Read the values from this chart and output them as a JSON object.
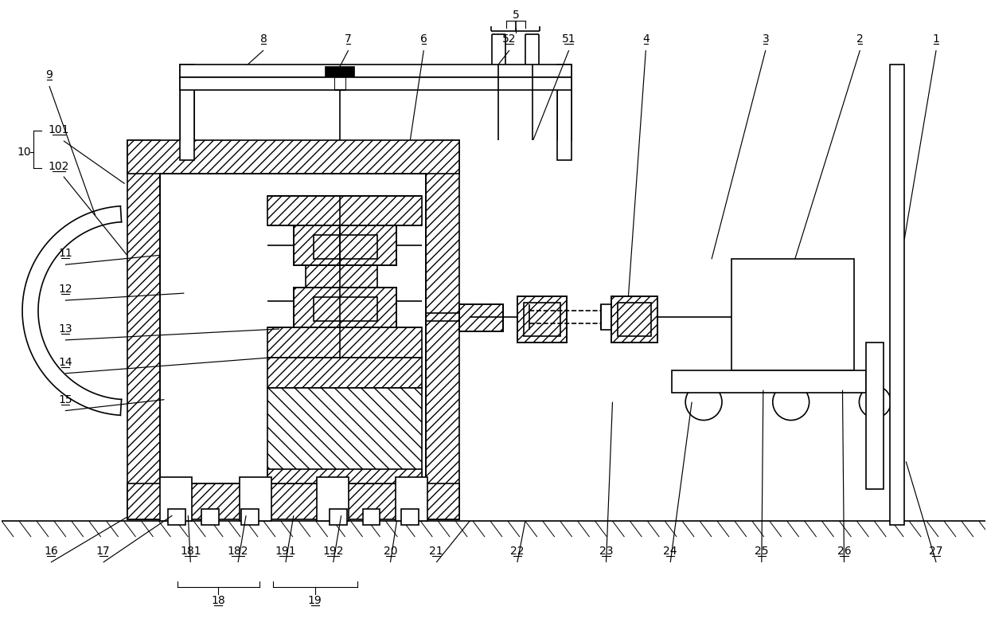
{
  "bg_color": "#ffffff",
  "lc": "#000000",
  "lw": 1.2,
  "tlw": 0.7,
  "fig_width": 12.4,
  "fig_height": 8.06
}
